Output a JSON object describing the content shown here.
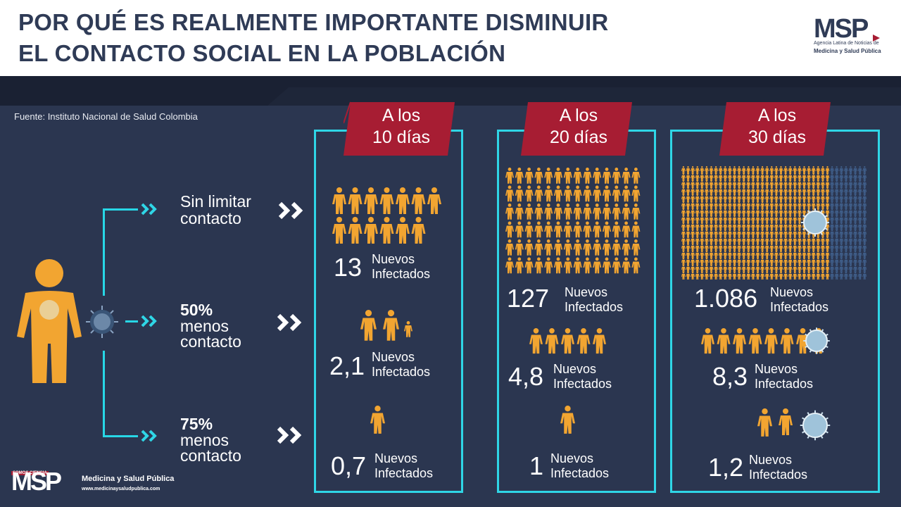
{
  "title": {
    "line1": "POR QUÉ ES REALMENTE IMPORTANTE DISMINUIR",
    "line2": "EL CONTACTO SOCIAL EN LA POBLACIÓN"
  },
  "logo_top": {
    "mark": "MSP",
    "tagline": "Agencia Latina de Noticias de",
    "name": "Medicina y Salud Pública"
  },
  "source": "Fuente: Instituto Nacional de Salud Colombia",
  "rows": [
    {
      "line1": "Sin limitar",
      "line2": "contacto"
    },
    {
      "line1": "50%",
      "line2": "menos",
      "line3": "contacto"
    },
    {
      "line1": "75%",
      "line2": "menos",
      "line3": "contacto"
    }
  ],
  "panels": [
    {
      "ribbon_l1": "A los",
      "ribbon_l2": "10 días",
      "values": [
        "13",
        "2,1",
        "0,7"
      ]
    },
    {
      "ribbon_l1": "A los",
      "ribbon_l2": "20 días",
      "values": [
        "127",
        "4,8",
        "1"
      ]
    },
    {
      "ribbon_l1": "A los",
      "ribbon_l2": "30 días",
      "values": [
        "1.086",
        "8,3",
        "1,2"
      ]
    }
  ],
  "nuevos": "Nuevos",
  "infectados": "Infectados",
  "bottom_logo": {
    "top": "SOMOS CIENCIA",
    "mark": "MSP",
    "name": "Medicina y Salud Pública",
    "url": "www.medicinaysaludpublica.com"
  },
  "colors": {
    "bg": "#2b3650",
    "accent": "#2fd6e6",
    "ribbon": "#a71d33",
    "figure": "#f2a531"
  },
  "icons": [
    "person-icon",
    "virus-icon",
    "chevron-right-icon"
  ]
}
